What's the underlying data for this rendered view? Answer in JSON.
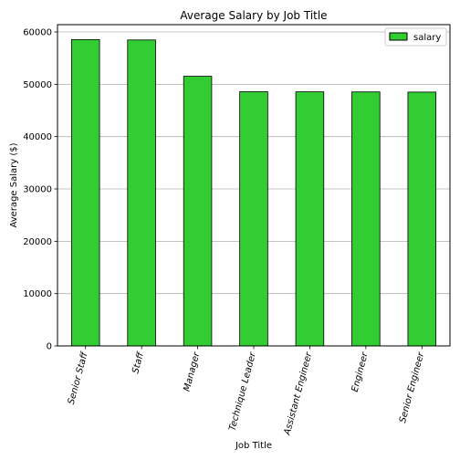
{
  "chart_data": {
    "type": "bar",
    "title": "Average Salary by Job Title",
    "xlabel": "Job Title",
    "ylabel": "Average Salary ($)",
    "categories": [
      "Senior Staff",
      "Staff",
      "Manager",
      "Technique Leader",
      "Assistant Engineer",
      "Engineer",
      "Senior Engineer"
    ],
    "series": [
      {
        "name": "salary",
        "values": [
          58550,
          58470,
          51530,
          48580,
          48560,
          48540,
          48510
        ]
      }
    ],
    "ylim": [
      0,
      61400
    ],
    "yticks": [
      0,
      10000,
      20000,
      30000,
      40000,
      50000,
      60000
    ],
    "grid": "horizontal",
    "legend_position": "top-right",
    "bar_color": "#32cd32",
    "edge_color": "#000000"
  }
}
